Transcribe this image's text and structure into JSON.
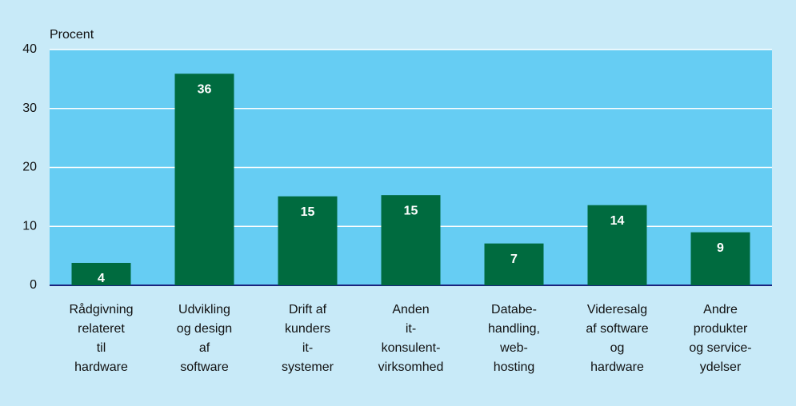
{
  "chart_data": {
    "type": "bar",
    "y_label": "Procent",
    "categories": [
      [
        "Rådgivning",
        "relateret",
        "til",
        "hardware"
      ],
      [
        "Udvikling",
        "og design",
        "af",
        "software"
      ],
      [
        "Drift af",
        "kunders",
        "it-",
        "systemer"
      ],
      [
        "Anden",
        "it-",
        "konsulent-",
        "virksomhed"
      ],
      [
        "Databe-",
        "handling,",
        "web-",
        "hosting"
      ],
      [
        "Videresalg",
        "af software",
        "og",
        "hardware"
      ],
      [
        "Andre",
        "produkter",
        "og service-",
        "ydelser"
      ]
    ],
    "values": [
      3.8,
      35.9,
      15.1,
      15.3,
      7.1,
      13.6,
      9
    ],
    "value_labels": [
      "4",
      "36",
      "15",
      "15",
      "7",
      "14",
      "9"
    ],
    "color": "#006b3f",
    "ylim": [
      0,
      40
    ],
    "yticks": [
      0,
      10,
      20,
      30,
      40
    ],
    "grid": true
  }
}
